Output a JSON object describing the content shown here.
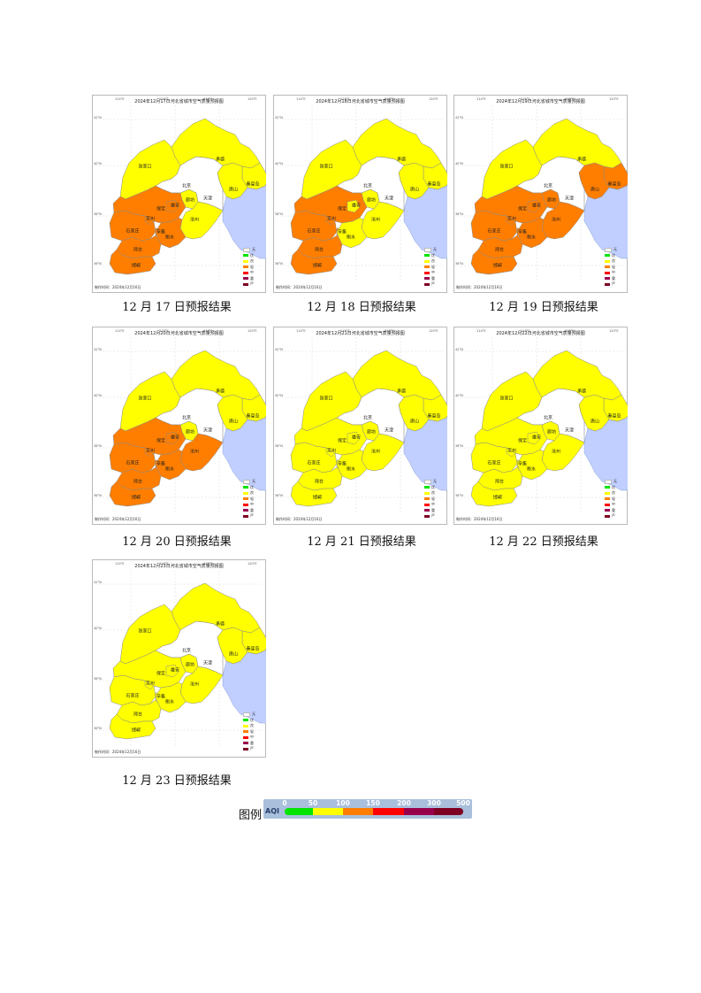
{
  "panels": [
    {
      "title": "2024年12月17日河北省城市空气质量预报图",
      "caption": "12 月 17 日预报结果",
      "maker": "制作时间：2024年12月16日",
      "levels": {
        "zhangjiakou": 1,
        "chengde": 1,
        "qinhuangdao": 1,
        "tangshan": 1,
        "langfang": 1,
        "baoding": 2,
        "xiongan": 2,
        "cangzhou": 1,
        "shijiazhuang": 2,
        "dingzhou": 2,
        "xinji": 2,
        "hengshui": 2,
        "xingtai": 2,
        "handan": 2
      }
    },
    {
      "title": "2024年12月18日河北省城市空气质量预报图",
      "caption": "12 月 18 日预报结果",
      "maker": "制作时间：2024年12月16日",
      "levels": {
        "zhangjiakou": 1,
        "chengde": 1,
        "qinhuangdao": 1,
        "tangshan": 1,
        "langfang": 1,
        "baoding": 2,
        "xiongan": 1,
        "cangzhou": 1,
        "shijiazhuang": 2,
        "dingzhou": 2,
        "xinji": 2,
        "hengshui": 1,
        "xingtai": 2,
        "handan": 2
      }
    },
    {
      "title": "2024年12月19日河北省城市空气质量预报图",
      "caption": "12 月 19 日预报结果",
      "maker": "制作时间：2024年12月16日",
      "levels": {
        "zhangjiakou": 1,
        "chengde": 1,
        "qinhuangdao": 2,
        "tangshan": 2,
        "langfang": 2,
        "baoding": 2,
        "xiongan": 2,
        "cangzhou": 2,
        "shijiazhuang": 2,
        "dingzhou": 2,
        "xinji": 2,
        "hengshui": 2,
        "xingtai": 2,
        "handan": 2
      }
    },
    {
      "title": "2024年12月20日河北省城市空气质量预报图",
      "caption": "12 月 20 日预报结果",
      "maker": "制作时间：2024年12月16日",
      "levels": {
        "zhangjiakou": 1,
        "chengde": 1,
        "qinhuangdao": 1,
        "tangshan": 1,
        "langfang": 1,
        "baoding": 2,
        "xiongan": 2,
        "cangzhou": 2,
        "shijiazhuang": 2,
        "dingzhou": 2,
        "xinji": 2,
        "hengshui": 2,
        "xingtai": 2,
        "handan": 2
      }
    },
    {
      "title": "2024年12月21日河北省城市空气质量预报图",
      "caption": "12 月 21 日预报结果",
      "maker": "制作时间：2024年12月16日",
      "levels": {
        "zhangjiakou": 1,
        "chengde": 1,
        "qinhuangdao": 1,
        "tangshan": 1,
        "langfang": 1,
        "baoding": 1,
        "xiongan": 1,
        "cangzhou": 1,
        "shijiazhuang": 1,
        "dingzhou": 1,
        "xinji": 1,
        "hengshui": 1,
        "xingtai": 1,
        "handan": 1
      }
    },
    {
      "title": "2024年12月22日河北省城市空气质量预报图",
      "caption": "12 月 22 日预报结果",
      "maker": "制作时间：2024年12月16日",
      "levels": {
        "zhangjiakou": 1,
        "chengde": 1,
        "qinhuangdao": 1,
        "tangshan": 1,
        "langfang": 1,
        "baoding": 1,
        "xiongan": 1,
        "cangzhou": 1,
        "shijiazhuang": 1,
        "dingzhou": 1,
        "xinji": 1,
        "hengshui": 1,
        "xingtai": 1,
        "handan": 1
      }
    },
    {
      "title": "2024年12月23日河北省城市空气质量预报图",
      "caption": "12 月 23 日预报结果",
      "maker": "制作时间：2024年12月16日",
      "levels": {
        "zhangjiakou": 1,
        "chengde": 1,
        "qinhuangdao": 1,
        "tangshan": 1,
        "langfang": 1,
        "baoding": 1,
        "xiongan": 1,
        "cangzhou": 1,
        "shijiazhuang": 1,
        "dingzhou": 1,
        "xinji": 1,
        "hengshui": 1,
        "xingtai": 1,
        "handan": 1
      }
    }
  ],
  "cities": {
    "zhangjiakou": "张家口",
    "chengde": "承德",
    "qinhuangdao": "秦皇岛",
    "tangshan": "唐山",
    "beijing": "北京",
    "tianjin": "天津",
    "langfang": "廊坊",
    "baoding": "保定",
    "xiongan": "雄安",
    "cangzhou": "沧州",
    "shijiazhuang": "石家庄",
    "dingzhou": "定州",
    "xinji": "辛集",
    "hengshui": "衡水",
    "xingtai": "邢台",
    "handan": "邯郸"
  },
  "small_legend": [
    "无",
    "优",
    "良",
    "轻",
    "中",
    "重",
    "严"
  ],
  "lon_labels": [
    "114°E",
    "116°E",
    "118°E",
    "120°E"
  ],
  "lat_labels": [
    "42°N",
    "40°N",
    "38°N",
    "36°N"
  ],
  "level_colors": [
    "#ffffff",
    "#ffff00",
    "#ff7e00",
    "#ff0000",
    "#99004c",
    "#7e0023"
  ],
  "sea_color": "#c0cfff",
  "legend": {
    "label": "图例",
    "bar_text": "AQI",
    "ticks": [
      "0",
      "50",
      "100",
      "150",
      "200",
      "300",
      "500"
    ],
    "colors": [
      "#00e400",
      "#ffff00",
      "#ff7e00",
      "#ff0000",
      "#99004c",
      "#7e0023"
    ]
  }
}
